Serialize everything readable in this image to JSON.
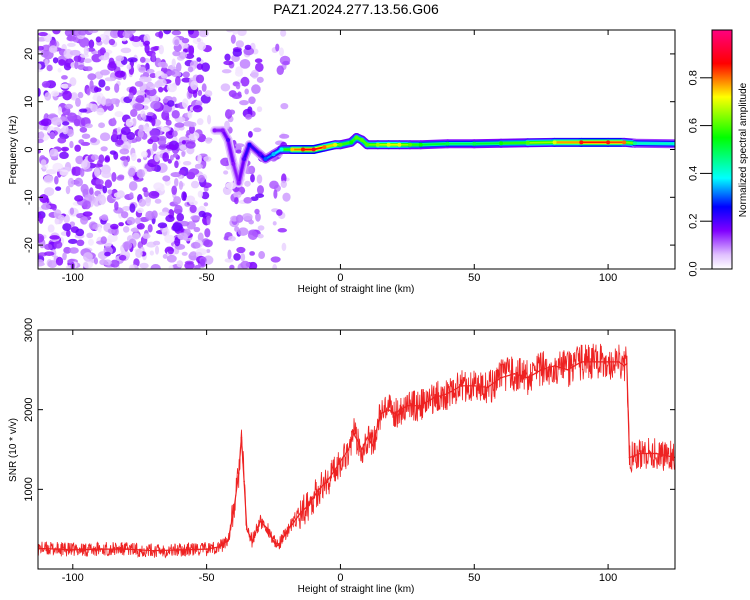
{
  "chart_data": [
    {
      "type": "heatmap",
      "title": "PAZ1.2024.277.13.56.G06",
      "xlabel": "Height of straight line (km)",
      "ylabel": "Frequency (Hz)",
      "xlim": [
        -113,
        125
      ],
      "ylim": [
        -25,
        25
      ],
      "xticks": [
        -100,
        -50,
        0,
        50,
        100
      ],
      "yticks": [
        -20,
        -10,
        0,
        10,
        20
      ],
      "grid": false,
      "colorbar": {
        "label": "Normalized spectral amplitude",
        "range": [
          0,
          1
        ],
        "ticks": [
          "0.0",
          "0.2",
          "0.4",
          "0.6",
          "0.8"
        ],
        "colormap": [
          "#ffffff",
          "#e0c0ff",
          "#8000ff",
          "#0000ff",
          "#00ffff",
          "#00ff00",
          "#ffff00",
          "#ff0000",
          "#ff0080"
        ]
      },
      "ridge": {
        "x": [
          -47,
          -44,
          -42,
          -40,
          -38,
          -36,
          -34,
          -30,
          -28,
          -25,
          -22,
          -18,
          -14,
          -10,
          -6,
          -2,
          0,
          4,
          6,
          8,
          10,
          14,
          18,
          22,
          26,
          30,
          40,
          50,
          60,
          70,
          80,
          90,
          100,
          106,
          110,
          125
        ],
        "freq": [
          4,
          4,
          2,
          -3,
          -7,
          -2,
          1,
          -1,
          -2,
          -1,
          0,
          0,
          0,
          0,
          0.5,
          1,
          1,
          1.5,
          2.5,
          2,
          1,
          1,
          1,
          1,
          1,
          1,
          1.2,
          1.2,
          1.3,
          1.4,
          1.5,
          1.5,
          1.5,
          1.5,
          1.3,
          1.2
        ],
        "amplitude": [
          0.15,
          0.15,
          0.2,
          0.15,
          0.15,
          0.2,
          0.25,
          0.2,
          0.3,
          0.35,
          0.4,
          0.75,
          0.85,
          0.9,
          0.8,
          0.7,
          0.6,
          0.55,
          0.6,
          0.6,
          0.6,
          0.65,
          0.7,
          0.7,
          0.6,
          0.55,
          0.5,
          0.5,
          0.55,
          0.6,
          0.7,
          0.85,
          0.85,
          0.8,
          0.45,
          0.4
        ]
      }
    },
    {
      "type": "line",
      "xlabel": "Height of straight line (km)",
      "ylabel": "SNR (10 * v/v)",
      "xlim": [
        -113,
        125
      ],
      "ylim": [
        0,
        3000
      ],
      "xticks": [
        -100,
        -50,
        0,
        50,
        100
      ],
      "yticks": [
        1000,
        2000,
        3000
      ],
      "grid": false,
      "color": "#ee2222",
      "x": [
        -113,
        -100,
        -90,
        -80,
        -70,
        -60,
        -50,
        -45,
        -42,
        -40,
        -38,
        -37,
        -36,
        -35,
        -33,
        -30,
        -27,
        -24,
        -22,
        -20,
        -18,
        -15,
        -12,
        -10,
        -8,
        -5,
        -2,
        0,
        3,
        5,
        8,
        10,
        12,
        15,
        18,
        20,
        25,
        30,
        35,
        40,
        45,
        50,
        55,
        60,
        65,
        70,
        75,
        80,
        85,
        90,
        95,
        100,
        104,
        106,
        107,
        108,
        112,
        118,
        125
      ],
      "y": [
        260,
        240,
        250,
        250,
        230,
        240,
        250,
        280,
        360,
        700,
        1200,
        1650,
        1100,
        500,
        350,
        600,
        500,
        280,
        350,
        480,
        560,
        700,
        800,
        900,
        1000,
        1100,
        1250,
        1350,
        1500,
        1700,
        1500,
        1650,
        1550,
        1950,
        2000,
        1950,
        2050,
        2050,
        2150,
        2200,
        2300,
        2300,
        2280,
        2400,
        2450,
        2400,
        2500,
        2550,
        2500,
        2600,
        2600,
        2600,
        2600,
        2550,
        2580,
        1400,
        1450,
        1450,
        1400
      ]
    }
  ]
}
